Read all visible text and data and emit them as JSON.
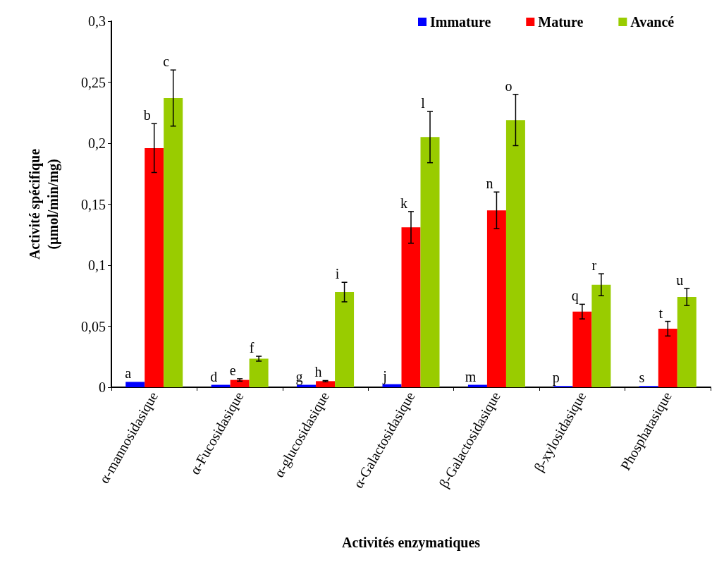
{
  "chart_data": {
    "type": "bar",
    "xlabel": "Activités enzymatiques",
    "ylabel": "Activité spécifique\n(µmol/min/mg)",
    "categories": [
      "α-mannosidasique",
      "α-Fucosidasique",
      "α-glucosidasique",
      "α-Galactosidasique",
      "β-Galactosidasique",
      "β-xylosidasique",
      "Phosphatasique"
    ],
    "series": [
      {
        "name": "Immature",
        "color": "#0000ff",
        "values": [
          0.0044,
          0.002,
          0.002,
          0.0025,
          0.002,
          0.001,
          0.001
        ]
      },
      {
        "name": "Mature",
        "color": "#ff0000",
        "values": [
          0.196,
          0.006,
          0.005,
          0.131,
          0.145,
          0.062,
          0.048
        ],
        "errors": [
          0.02,
          0.001,
          0.0005,
          0.013,
          0.015,
          0.006,
          0.006
        ]
      },
      {
        "name": "Avancé",
        "color": "#99cc00",
        "values": [
          0.237,
          0.0234,
          0.078,
          0.205,
          0.219,
          0.084,
          0.074
        ],
        "errors": [
          0.023,
          0.002,
          0.008,
          0.021,
          0.021,
          0.009,
          0.007
        ]
      }
    ],
    "ylim": [
      0,
      0.3
    ],
    "yticks": [
      {
        "value": 0,
        "label": "0"
      },
      {
        "value": 0.05,
        "label": "0,05"
      },
      {
        "value": 0.1,
        "label": "0,1"
      },
      {
        "value": 0.15,
        "label": "0,15"
      },
      {
        "value": 0.2,
        "label": "0,2"
      },
      {
        "value": 0.25,
        "label": "0,25"
      },
      {
        "value": 0.3,
        "label": "0,3"
      }
    ],
    "grid": false,
    "legend": "top",
    "annotations": [
      "a",
      "b",
      "c",
      "d",
      "e",
      "f",
      "g",
      "h",
      "i",
      "j",
      "k",
      "l",
      "m",
      "n",
      "o",
      "p",
      "q",
      "r",
      "s",
      "t",
      "u"
    ]
  }
}
